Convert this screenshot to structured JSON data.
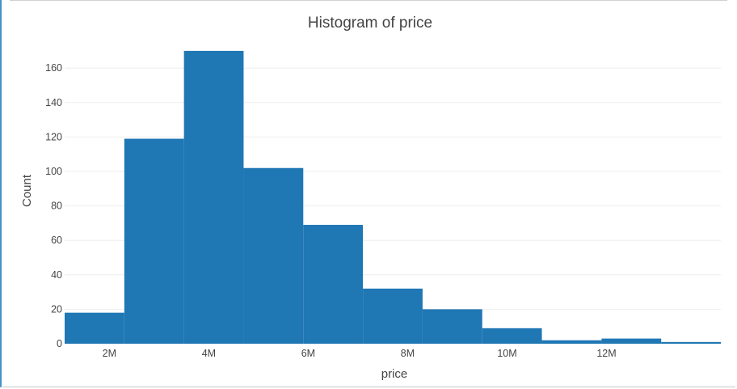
{
  "chart_data": {
    "type": "bar",
    "title": "Histogram of price",
    "xlabel": "price",
    "ylabel": "Count",
    "bins": [
      {
        "x0": 1.1,
        "x1": 2.3,
        "count": 18
      },
      {
        "x0": 2.3,
        "x1": 3.5,
        "count": 119
      },
      {
        "x0": 3.5,
        "x1": 4.7,
        "count": 170
      },
      {
        "x0": 4.7,
        "x1": 5.9,
        "count": 102
      },
      {
        "x0": 5.9,
        "x1": 7.1,
        "count": 69
      },
      {
        "x0": 7.1,
        "x1": 8.3,
        "count": 32
      },
      {
        "x0": 8.3,
        "x1": 9.5,
        "count": 20
      },
      {
        "x0": 9.5,
        "x1": 10.7,
        "count": 9
      },
      {
        "x0": 10.7,
        "x1": 11.9,
        "count": 2
      },
      {
        "x0": 11.9,
        "x1": 13.1,
        "count": 3
      },
      {
        "x0": 13.1,
        "x1": 14.3,
        "count": 1
      }
    ],
    "x_unit": "M",
    "xlim": [
      1.1,
      14.3
    ],
    "ylim": [
      0,
      177
    ],
    "x_ticks": [
      {
        "value": 2,
        "label": "2M"
      },
      {
        "value": 4,
        "label": "4M"
      },
      {
        "value": 6,
        "label": "6M"
      },
      {
        "value": 8,
        "label": "8M"
      },
      {
        "value": 10,
        "label": "10M"
      },
      {
        "value": 12,
        "label": "12M"
      }
    ],
    "y_ticks": [
      {
        "value": 0,
        "label": "0"
      },
      {
        "value": 20,
        "label": "20"
      },
      {
        "value": 40,
        "label": "40"
      },
      {
        "value": 60,
        "label": "60"
      },
      {
        "value": 80,
        "label": "80"
      },
      {
        "value": 100,
        "label": "100"
      },
      {
        "value": 120,
        "label": "120"
      },
      {
        "value": 140,
        "label": "140"
      },
      {
        "value": 160,
        "label": "160"
      }
    ],
    "grid": true,
    "bar_color": "#1f77b4",
    "grid_color": "#eeeeee"
  }
}
